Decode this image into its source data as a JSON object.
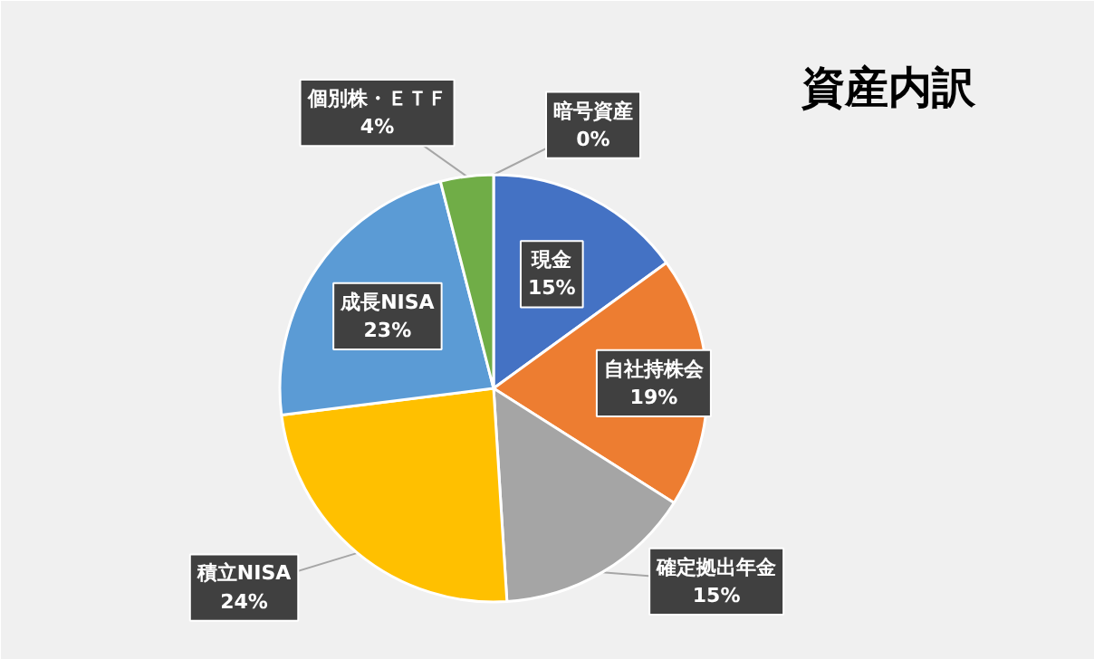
{
  "chart_data": {
    "type": "pie",
    "title": "資産内訳",
    "categories": [
      "現金",
      "自社持株会",
      "確定拠出年金",
      "積立NISA",
      "成長NISA",
      "個別株・ＥＴＦ",
      "暗号資産"
    ],
    "values": [
      15,
      19,
      15,
      24,
      23,
      4,
      0
    ],
    "value_labels": [
      "15%",
      "19%",
      "15%",
      "24%",
      "23%",
      "4%",
      "0%"
    ],
    "colors": [
      "#4472c4",
      "#ed7d31",
      "#a5a5a5",
      "#ffc000",
      "#5b9bd5",
      "#70ad47",
      "#264478"
    ],
    "legend": false
  }
}
